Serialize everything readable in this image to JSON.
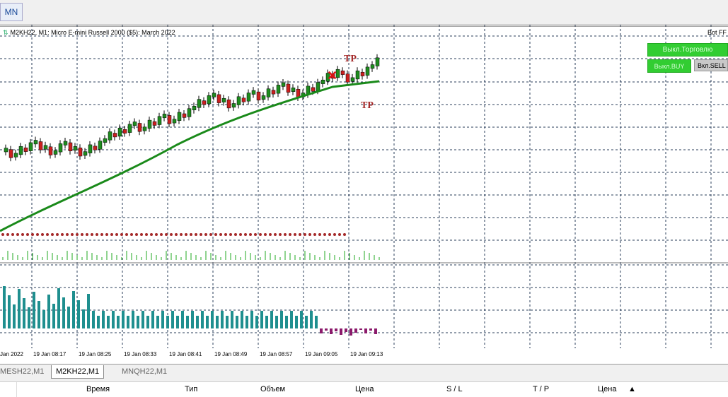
{
  "toolbar": {
    "timeframe": "MN"
  },
  "chart": {
    "title": "M2KH22, M1:  Micro E-mini Russell 2000 ($5): March 2022",
    "bot_label": "Bot FF",
    "buttons": {
      "trade": "Выкл.Торговлю",
      "buy": "Выкл.BUY",
      "sell": "Вкл.SELL"
    },
    "tp_label": "TP",
    "time_labels": [
      "Jan 2022",
      "19 Jan 08:17",
      "19 Jan 08:25",
      "19 Jan 08:33",
      "19 Jan 08:41",
      "19 Jan 08:49",
      "19 Jan 08:57",
      "19 Jan 09:05",
      "19 Jan 09:13"
    ],
    "colors": {
      "bull": "#1e8c1e",
      "bear": "#cc1f1f",
      "ma": "#1a8a1a",
      "histogram": "#1f8f8f",
      "histogram_neg": "#8b1a6b",
      "dots": "#a52a2a",
      "volume": "#22aa22",
      "grid": "#283c5a"
    }
  },
  "tabs": [
    "MESH22,M1",
    "M2KH22,M1",
    "MNQH22,M1"
  ],
  "active_tab": 1,
  "table": {
    "columns": [
      "Время",
      "Тип",
      "Объем",
      "Цена",
      "S / L",
      "T / P",
      "Цена"
    ]
  }
}
